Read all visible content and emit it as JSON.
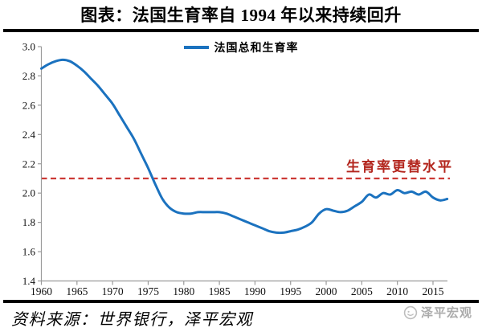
{
  "title": "图表：法国生育率自 1994 年以来持续回升",
  "legend": {
    "series_label": "法国总和生育率"
  },
  "annotations": {
    "replacement_label": "生育率更替水平"
  },
  "footer": {
    "source": "资料来源：世界银行，泽平宏观",
    "watermark": "泽平宏观"
  },
  "colors": {
    "series_line": "#1B72BF",
    "replacement_line": "#CC3A36",
    "replacement_text": "#B3261E",
    "axis": "#9B9B9B",
    "tick_text": "#111111",
    "watermark_gray": "#ACACAC"
  },
  "chart_data": {
    "type": "line",
    "title": "图表：法国生育率自 1994 年以来持续回升",
    "xlabel": "",
    "ylabel": "",
    "grid": false,
    "legend_position": "top-center",
    "xlim": [
      1960,
      2017
    ],
    "ylim": [
      1.4,
      3.0
    ],
    "xticks": [
      1960,
      1965,
      1970,
      1975,
      1980,
      1985,
      1990,
      1995,
      2000,
      2005,
      2010,
      2015
    ],
    "yticks": [
      1.4,
      1.6,
      1.8,
      2.0,
      2.2,
      2.4,
      2.6,
      2.8,
      3.0
    ],
    "replacement_level": {
      "value": 2.1,
      "label": "生育率更替水平",
      "style": "dashed"
    },
    "x": [
      1960,
      1961,
      1962,
      1963,
      1964,
      1965,
      1966,
      1967,
      1968,
      1969,
      1970,
      1971,
      1972,
      1973,
      1974,
      1975,
      1976,
      1977,
      1978,
      1979,
      1980,
      1981,
      1982,
      1983,
      1984,
      1985,
      1986,
      1987,
      1988,
      1989,
      1990,
      1991,
      1992,
      1993,
      1994,
      1995,
      1996,
      1997,
      1998,
      1999,
      2000,
      2001,
      2002,
      2003,
      2004,
      2005,
      2006,
      2007,
      2008,
      2009,
      2010,
      2011,
      2012,
      2013,
      2014,
      2015,
      2016,
      2017
    ],
    "series": [
      {
        "name": "法国总和生育率",
        "values": [
          2.85,
          2.88,
          2.9,
          2.91,
          2.9,
          2.87,
          2.83,
          2.78,
          2.73,
          2.67,
          2.61,
          2.53,
          2.45,
          2.37,
          2.27,
          2.17,
          2.06,
          1.96,
          1.9,
          1.87,
          1.86,
          1.86,
          1.87,
          1.87,
          1.87,
          1.87,
          1.86,
          1.84,
          1.82,
          1.8,
          1.78,
          1.76,
          1.74,
          1.73,
          1.73,
          1.74,
          1.75,
          1.77,
          1.8,
          1.86,
          1.89,
          1.88,
          1.87,
          1.88,
          1.91,
          1.94,
          1.99,
          1.97,
          2.0,
          1.99,
          2.02,
          2.0,
          2.01,
          1.99,
          2.01,
          1.97,
          1.95,
          1.96
        ]
      }
    ]
  }
}
